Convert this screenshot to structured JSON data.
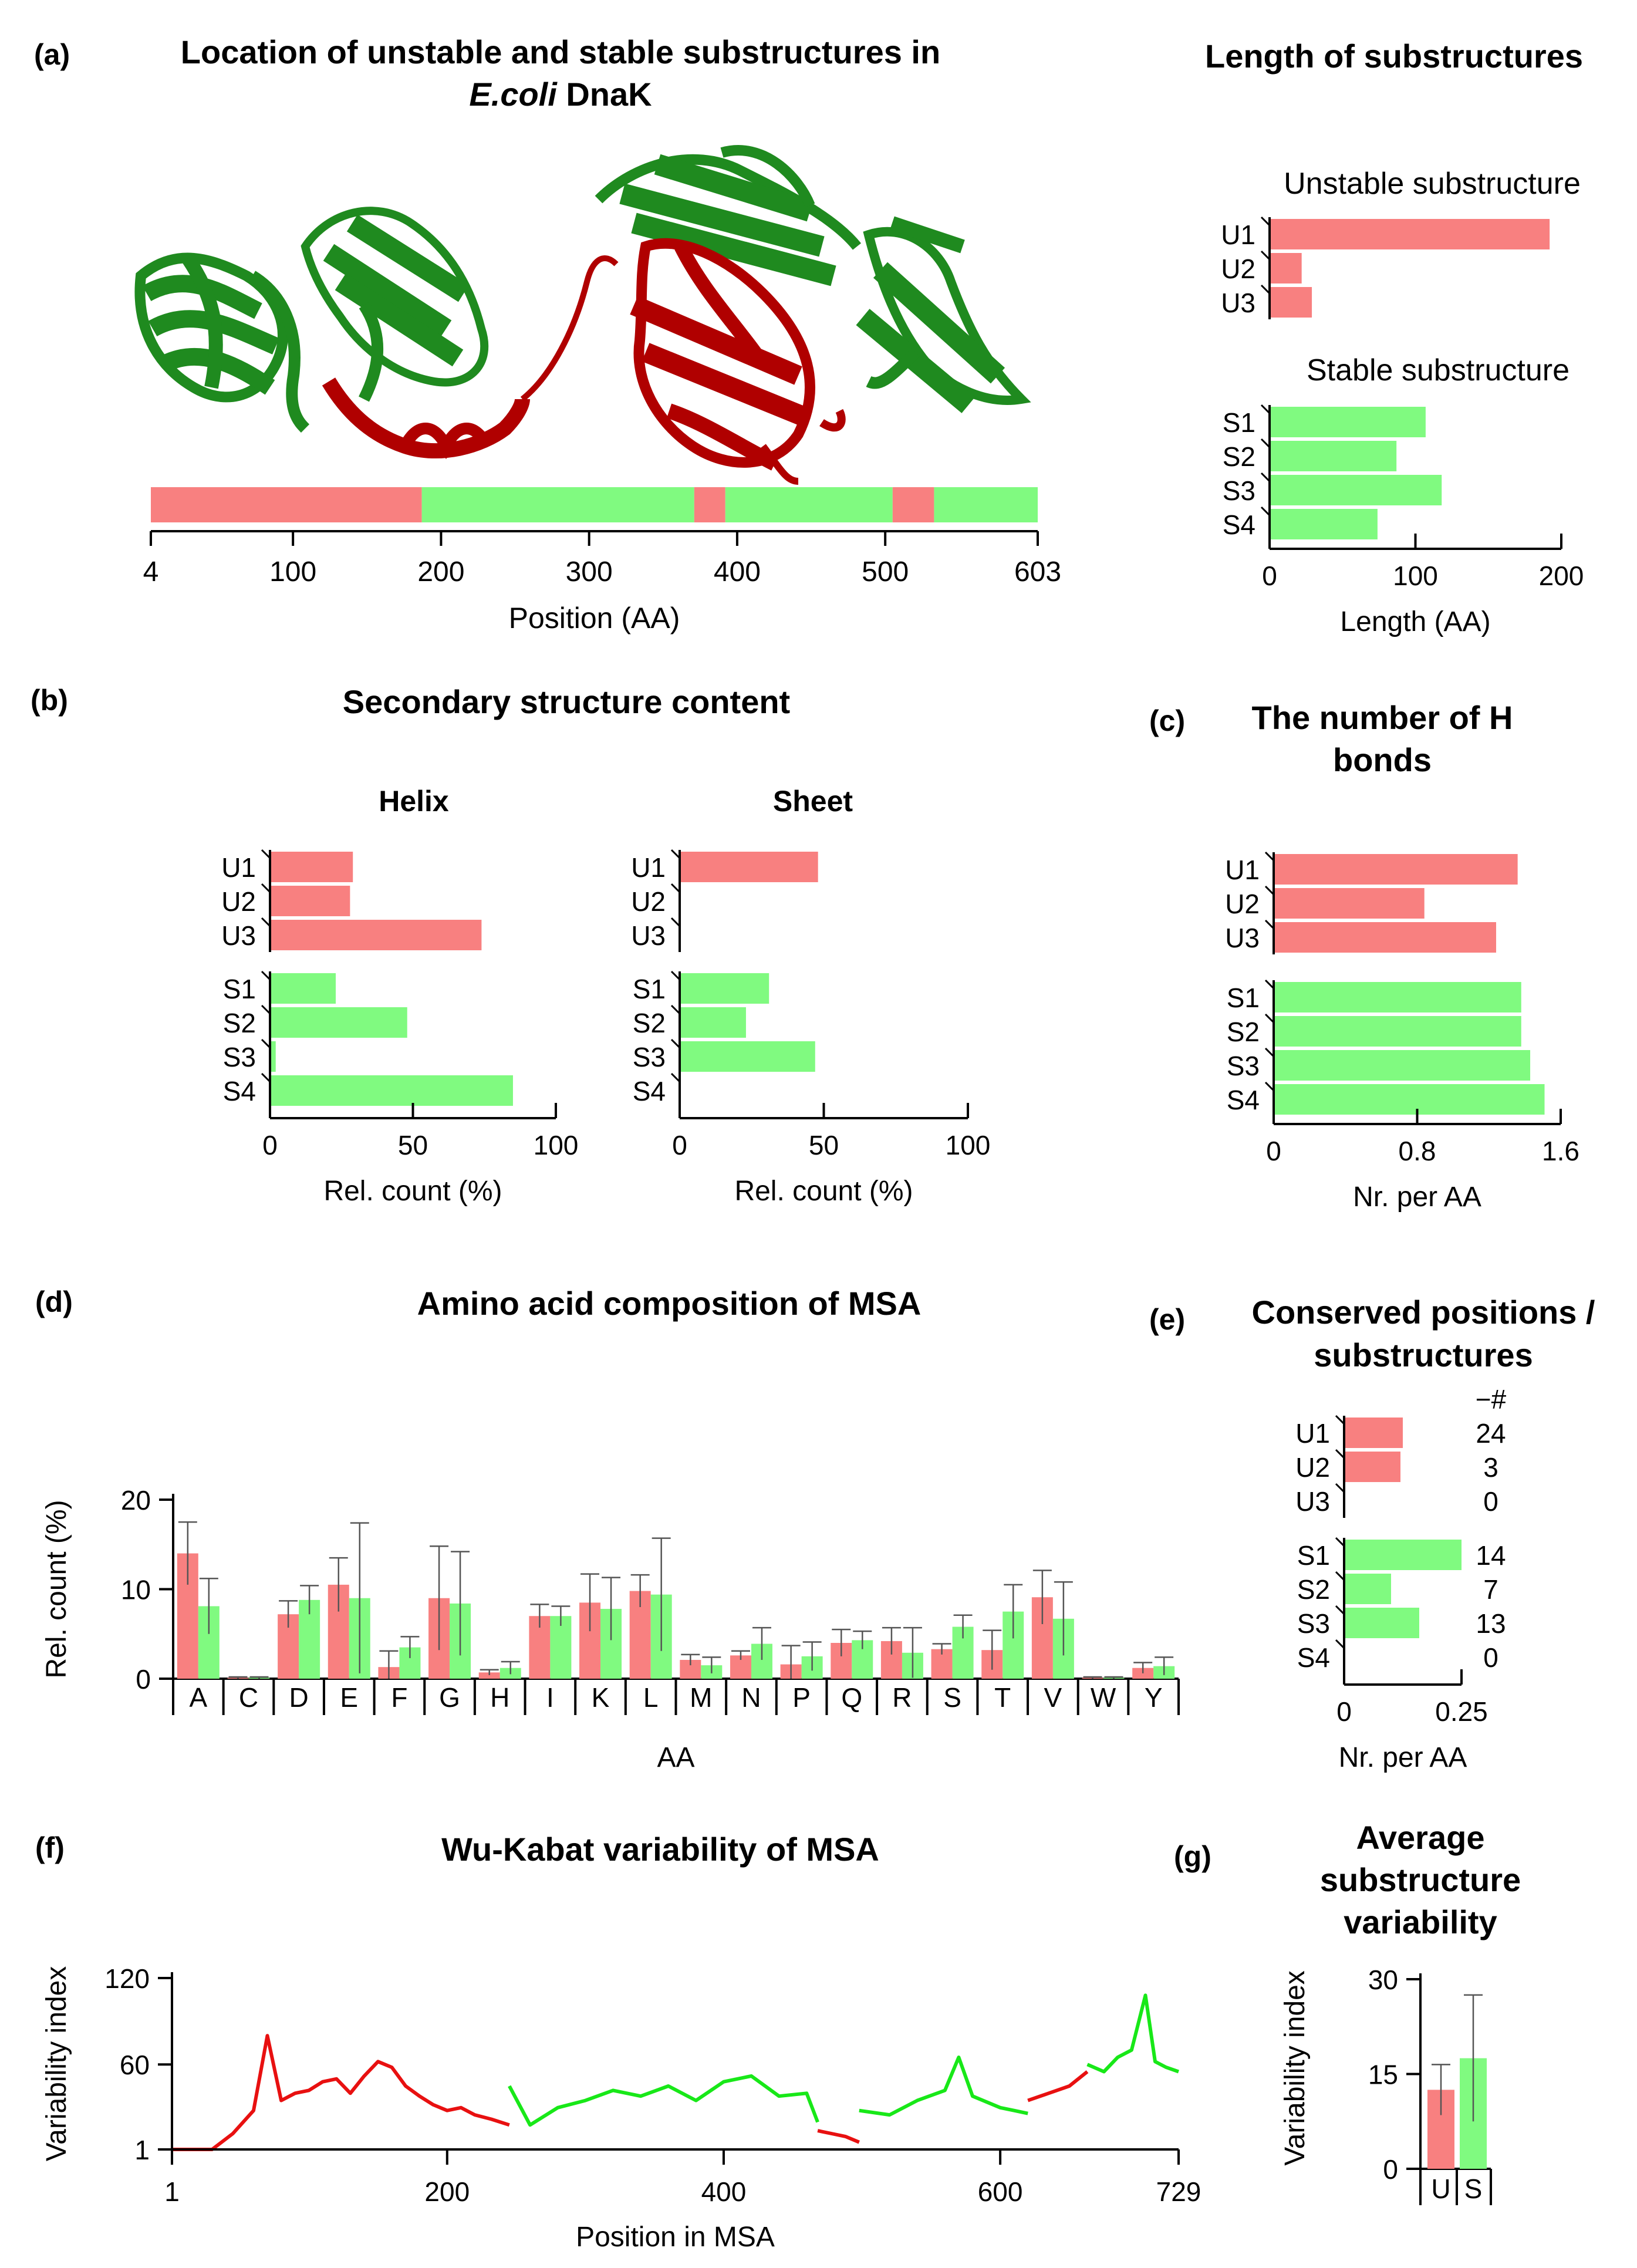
{
  "colors": {
    "unstable": "#f88080",
    "stable": "#80fa80",
    "line_red": "#e81010",
    "line_green": "#18e818",
    "protein_green": "#22a822",
    "protein_red": "#c40808",
    "axis": "#000000"
  },
  "panel_a": {
    "label": "(a)",
    "title_line1": "Location of unstable and stable substructures in",
    "title_italic": "E.coli",
    "title_rest": " DnaK",
    "image_icon": "protein-ribbon-structure",
    "xlabel": "Position (AA)"
  },
  "panel_length": {
    "title": "Length of substructures",
    "unstable_title": "Unstable substructure",
    "stable_title": "Stable substructure",
    "xlabel": "Length (AA)"
  },
  "panel_b": {
    "label": "(b)",
    "title": "Secondary structure content",
    "helix_title": "Helix",
    "sheet_title": "Sheet",
    "xlabel": "Rel. count (%)"
  },
  "panel_c": {
    "label": "(c)",
    "title_line1": "The number of H",
    "title_line2": "bonds",
    "xlabel": "Nr. per AA"
  },
  "panel_d": {
    "label": "(d)",
    "title": "Amino acid composition of MSA",
    "xlabel": "AA",
    "ylabel": "Rel. count (%)"
  },
  "panel_e": {
    "label": "(e)",
    "title_line1": "Conserved positions /",
    "title_line2": "substructures",
    "count_header": "−#",
    "xlabel": "Nr. per AA"
  },
  "panel_f": {
    "label": "(f)",
    "title": "Wu-Kabat variability of MSA",
    "xlabel": "Position in MSA",
    "ylabel": "Variability index"
  },
  "panel_g": {
    "label": "(g)",
    "title_line1": "Average",
    "title_line2": "substructure",
    "title_line3": "variability",
    "ylabel": "Variability index"
  },
  "chart_data": [
    {
      "id": "position-bar",
      "type": "bar",
      "title": "Location of unstable and stable substructures in E.coli DnaK",
      "xlabel": "Position (AA)",
      "xlim": [
        4,
        603
      ],
      "xticks": [
        {
          "v": 4,
          "t": "4"
        },
        {
          "v": 100,
          "t": "100"
        },
        {
          "v": 200,
          "t": "200"
        },
        {
          "v": 300,
          "t": "300"
        },
        {
          "v": 400,
          "t": "400"
        },
        {
          "v": 500,
          "t": "500"
        },
        {
          "v": 603,
          "t": "603"
        }
      ],
      "segments": [
        {
          "start": 4,
          "end": 187,
          "kind": "unstable"
        },
        {
          "start": 187,
          "end": 371,
          "kind": "stable"
        },
        {
          "start": 371,
          "end": 392,
          "kind": "unstable"
        },
        {
          "start": 392,
          "end": 505,
          "kind": "stable"
        },
        {
          "start": 505,
          "end": 533,
          "kind": "unstable"
        },
        {
          "start": 533,
          "end": 603,
          "kind": "stable"
        }
      ]
    },
    {
      "id": "length",
      "type": "bar",
      "orientation": "horizontal",
      "title": "Length of substructures",
      "xlabel": "Length (AA)",
      "xlim": [
        0,
        200
      ],
      "xticks": [
        {
          "v": 0,
          "t": "0"
        },
        {
          "v": 100,
          "t": "100"
        },
        {
          "v": 200,
          "t": "200"
        }
      ],
      "groups": [
        {
          "title": "Unstable substructure",
          "kind": "unstable",
          "categories": [
            "U1",
            "U2",
            "U3"
          ],
          "values": [
            192,
            22,
            29
          ]
        },
        {
          "title": "Stable substructure",
          "kind": "stable",
          "categories": [
            "S1",
            "S2",
            "S3",
            "S4"
          ],
          "values": [
            107,
            87,
            118,
            74
          ]
        }
      ]
    },
    {
      "id": "helix",
      "type": "bar",
      "orientation": "horizontal",
      "title": "Helix",
      "xlabel": "Rel. count (%)",
      "xlim": [
        0,
        100
      ],
      "xticks": [
        {
          "v": 0,
          "t": "0"
        },
        {
          "v": 50,
          "t": "50"
        },
        {
          "v": 100,
          "t": "100"
        }
      ],
      "groups": [
        {
          "kind": "unstable",
          "categories": [
            "U1",
            "U2",
            "U3"
          ],
          "values": [
            29,
            28,
            74
          ]
        },
        {
          "kind": "stable",
          "categories": [
            "S1",
            "S2",
            "S3",
            "S4"
          ],
          "values": [
            23,
            48,
            2,
            85
          ]
        }
      ]
    },
    {
      "id": "sheet",
      "type": "bar",
      "orientation": "horizontal",
      "title": "Sheet",
      "xlabel": "Rel. count (%)",
      "xlim": [
        0,
        100
      ],
      "xticks": [
        {
          "v": 0,
          "t": "0"
        },
        {
          "v": 50,
          "t": "50"
        },
        {
          "v": 100,
          "t": "100"
        }
      ],
      "groups": [
        {
          "kind": "unstable",
          "categories": [
            "U1",
            "U2",
            "U3"
          ],
          "values": [
            48,
            0,
            0
          ]
        },
        {
          "kind": "stable",
          "categories": [
            "S1",
            "S2",
            "S3",
            "S4"
          ],
          "values": [
            31,
            23,
            47,
            0
          ]
        }
      ]
    },
    {
      "id": "hbonds",
      "type": "bar",
      "orientation": "horizontal",
      "title": "The number of H bonds",
      "xlabel": "Nr. per AA",
      "xlim": [
        0,
        1.6
      ],
      "xticks": [
        {
          "v": 0,
          "t": "0"
        },
        {
          "v": 0.8,
          "t": "0.8"
        },
        {
          "v": 1.6,
          "t": "1.6"
        }
      ],
      "groups": [
        {
          "kind": "unstable",
          "categories": [
            "U1",
            "U2",
            "U3"
          ],
          "values": [
            1.36,
            0.84,
            1.24
          ]
        },
        {
          "kind": "stable",
          "categories": [
            "S1",
            "S2",
            "S3",
            "S4"
          ],
          "values": [
            1.38,
            1.38,
            1.43,
            1.51
          ]
        }
      ]
    },
    {
      "id": "aa-composition",
      "type": "bar",
      "title": "Amino acid composition of MSA",
      "xlabel": "AA",
      "ylabel": "Rel. count (%)",
      "ylim": [
        0,
        20
      ],
      "yticks": [
        {
          "v": 0,
          "t": "0"
        },
        {
          "v": 10,
          "t": "10"
        },
        {
          "v": 20,
          "t": "20"
        }
      ],
      "categories": [
        "A",
        "C",
        "D",
        "E",
        "F",
        "G",
        "H",
        "I",
        "K",
        "L",
        "M",
        "N",
        "P",
        "Q",
        "R",
        "S",
        "T",
        "V",
        "W",
        "Y"
      ],
      "series": [
        {
          "name": "Unstable",
          "kind": "unstable",
          "values": [
            14,
            0.1,
            7.2,
            10.5,
            1.3,
            9,
            0.7,
            7,
            8.5,
            9.8,
            2.1,
            2.6,
            1.6,
            4,
            4.2,
            3.3,
            3.2,
            9.1,
            0.1,
            1.2
          ],
          "errors": [
            3.5,
            0.1,
            1.5,
            3,
            1.8,
            5.8,
            0.3,
            1.3,
            3.2,
            1.8,
            0.6,
            0.5,
            2.1,
            1.5,
            1.5,
            0.6,
            2.2,
            3,
            0.1,
            0.6
          ]
        },
        {
          "name": "Stable",
          "kind": "stable",
          "values": [
            8.1,
            0.1,
            8.8,
            9,
            3.5,
            8.4,
            1.2,
            7,
            7.8,
            9.4,
            1.5,
            3.9,
            2.5,
            4.3,
            2.9,
            5.8,
            7.5,
            6.7,
            0.1,
            1.4
          ],
          "errors": [
            3.1,
            0.1,
            1.6,
            8.4,
            1.2,
            5.8,
            0.7,
            1.1,
            3.5,
            6.3,
            0.9,
            1.8,
            1.6,
            1,
            2.8,
            1.3,
            3,
            4.1,
            0.1,
            1
          ]
        }
      ]
    },
    {
      "id": "conserved",
      "type": "bar",
      "orientation": "horizontal",
      "title": "Conserved positions / substructures",
      "xlabel": "Nr. per AA",
      "xlim": [
        0,
        0.25
      ],
      "xticks": [
        {
          "v": 0,
          "t": "0"
        },
        {
          "v": 0.25,
          "t": "0.25"
        }
      ],
      "groups": [
        {
          "kind": "unstable",
          "categories": [
            "U1",
            "U2",
            "U3"
          ],
          "values": [
            0.125,
            0.12,
            0
          ],
          "counts": [
            "24",
            "3",
            "0"
          ]
        },
        {
          "kind": "stable",
          "categories": [
            "S1",
            "S2",
            "S3",
            "S4"
          ],
          "values": [
            0.25,
            0.1,
            0.16,
            0
          ],
          "counts": [
            "14",
            "7",
            "13",
            "0"
          ]
        }
      ]
    },
    {
      "id": "wu-kabat",
      "type": "line",
      "title": "Wu-Kabat variability of MSA",
      "xlabel": "Position in MSA",
      "ylabel": "Variability index",
      "xlim": [
        1,
        729
      ],
      "ylim": [
        1,
        120
      ],
      "xticks": [
        {
          "v": 1,
          "t": "1"
        },
        {
          "v": 200,
          "t": "200"
        },
        {
          "v": 400,
          "t": "400"
        },
        {
          "v": 600,
          "t": "600"
        },
        {
          "v": 729,
          "t": "729"
        }
      ],
      "yticks": [
        {
          "v": 1,
          "t": "1"
        },
        {
          "v": 60,
          "t": "60"
        },
        {
          "v": 120,
          "t": "120"
        }
      ],
      "segments": [
        {
          "kind": "unstable",
          "x": [
            1,
            30,
            45,
            60,
            70,
            80,
            90,
            100,
            110,
            120,
            130,
            140,
            150,
            160,
            170,
            180,
            190,
            200,
            210,
            220,
            232,
            245
          ],
          "y": [
            1,
            1,
            12,
            28,
            80,
            35,
            40,
            42,
            48,
            50,
            40,
            52,
            62,
            58,
            45,
            38,
            32,
            28,
            30,
            25,
            22,
            18
          ]
        },
        {
          "kind": "stable",
          "x": [
            245,
            260,
            280,
            300,
            320,
            340,
            360,
            380,
            400,
            420,
            440,
            460,
            468
          ],
          "y": [
            45,
            18,
            30,
            35,
            42,
            38,
            45,
            35,
            48,
            52,
            38,
            40,
            20
          ]
        },
        {
          "kind": "unstable",
          "x": [
            468,
            478,
            488,
            498
          ],
          "y": [
            14,
            12,
            10,
            6
          ]
        },
        {
          "kind": "stable",
          "x": [
            498,
            520,
            540,
            560,
            570,
            580,
            600,
            610,
            620
          ],
          "y": [
            28,
            25,
            35,
            42,
            65,
            38,
            30,
            28,
            26
          ]
        },
        {
          "kind": "unstable",
          "x": [
            620,
            635,
            650,
            663
          ],
          "y": [
            35,
            40,
            45,
            55
          ]
        },
        {
          "kind": "stable",
          "x": [
            663,
            675,
            685,
            695,
            705,
            712,
            720,
            729
          ],
          "y": [
            60,
            55,
            65,
            70,
            108,
            62,
            58,
            55
          ]
        }
      ]
    },
    {
      "id": "avg-variability",
      "type": "bar",
      "title": "Average substructure variability",
      "ylabel": "Variability index",
      "ylim": [
        0,
        30
      ],
      "yticks": [
        {
          "v": 0,
          "t": "0"
        },
        {
          "v": 15,
          "t": "15"
        },
        {
          "v": 30,
          "t": "30"
        }
      ],
      "categories": [
        "U",
        "S"
      ],
      "values": [
        12.5,
        17.5
      ],
      "errors": [
        4,
        10
      ]
    }
  ]
}
